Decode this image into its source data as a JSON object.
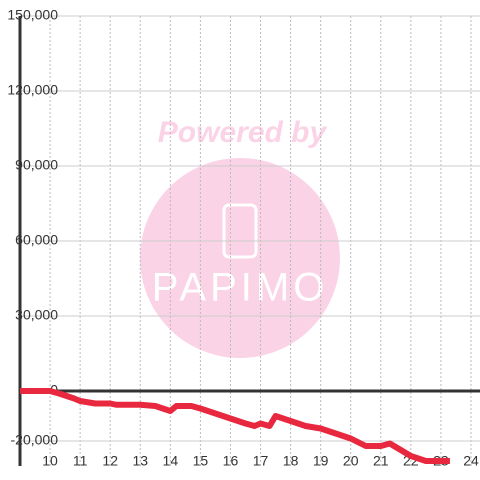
{
  "chart_data": {
    "type": "line",
    "watermark": {
      "line1": "Powered by",
      "line2": "PAPIMO"
    },
    "x": [
      9,
      10,
      10.3,
      10.8,
      11,
      11.5,
      12,
      12.2,
      13,
      13.5,
      14,
      14.2,
      14.7,
      15,
      15.5,
      16,
      16.5,
      16.8,
      17,
      17.3,
      17.5,
      18,
      18.5,
      19,
      19.5,
      20,
      20.5,
      21,
      21.3,
      22,
      22.5,
      23.3
    ],
    "series": [
      {
        "color": "#e8283f",
        "values": [
          0,
          0,
          -1000,
          -3000,
          -4000,
          -5000,
          -5000,
          -5500,
          -5500,
          -6000,
          -8000,
          -6000,
          -6000,
          -7000,
          -9000,
          -11000,
          -13000,
          -14000,
          -13000,
          -14000,
          -10000,
          -12000,
          -14000,
          -15000,
          -17000,
          -19000,
          -22000,
          -22000,
          -21000,
          -26000,
          -28000,
          -28000
        ]
      }
    ],
    "xlim": [
      9,
      24.3
    ],
    "xticks": [
      10,
      11,
      12,
      13,
      14,
      15,
      16,
      17,
      18,
      19,
      20,
      21,
      22,
      23,
      24
    ],
    "ylim": [
      -30000,
      150000
    ],
    "yticks": [
      {
        "value": -20000,
        "label": "-20,000"
      },
      0,
      {
        "value": 30000,
        "label": "30,000"
      },
      {
        "value": 60000,
        "label": "60,000"
      },
      {
        "value": 90000,
        "label": "90,000"
      },
      {
        "value": 120000,
        "label": "120,000"
      },
      {
        "value": 150000,
        "label": "150,000"
      }
    ],
    "grid": true
  }
}
